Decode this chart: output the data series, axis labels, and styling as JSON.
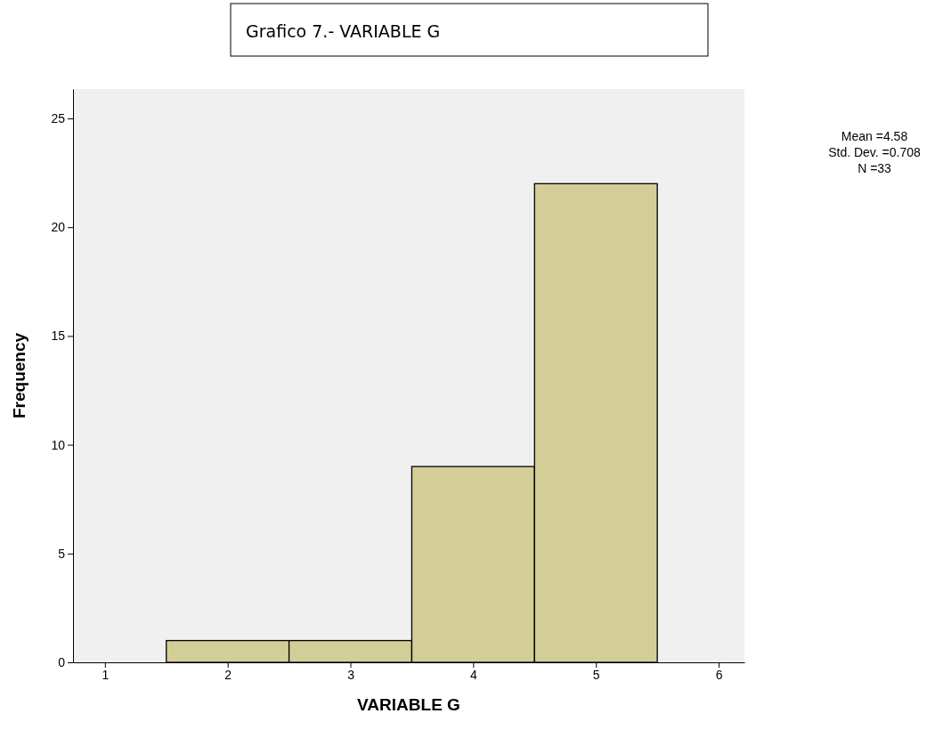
{
  "chart_data": {
    "type": "histogram",
    "title": "Grafico 7.- VARIABLE G",
    "xlabel": "VARIABLE G",
    "ylabel": "Frequency",
    "bins": [
      1.5,
      2.5,
      3.5,
      4.5,
      5.5
    ],
    "values": [
      1,
      1,
      9,
      22
    ],
    "color": "#d3ce97",
    "xlim": [
      0.74,
      6.21
    ],
    "xticks": [
      1,
      2,
      3,
      4,
      5,
      6
    ],
    "ylim": [
      0,
      26.35
    ],
    "yticks": [
      0,
      5,
      10,
      15,
      20,
      25
    ],
    "annotations": [
      "Mean =4.58",
      "Std. Dev. =0.708",
      "N =33"
    ]
  }
}
